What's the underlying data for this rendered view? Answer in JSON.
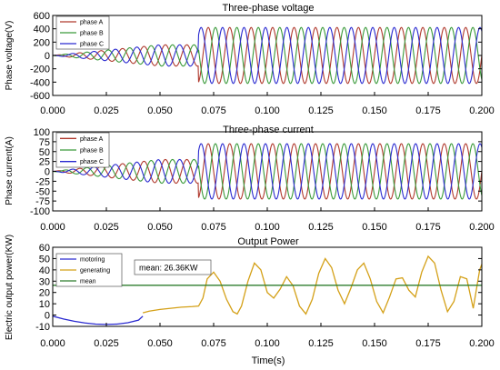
{
  "figure": {
    "xlabel": "Time(s)"
  },
  "chart_data": [
    {
      "type": "line",
      "title": "Three-phase voltage",
      "ylabel": "Phase voltage(V)",
      "xlim": [
        0,
        0.2
      ],
      "ylim": [
        -600,
        600
      ],
      "xticks": [
        "0.000",
        "0.025",
        "0.050",
        "0.075",
        "0.100",
        "0.125",
        "0.150",
        "0.175",
        "0.200"
      ],
      "yticks": [
        600,
        400,
        200,
        0,
        -200,
        -400,
        -600
      ],
      "ytick_labels": [
        "600",
        "400",
        "200",
        "0",
        "-200",
        "-400",
        "-600"
      ],
      "legend_position": "top-left",
      "waveform": {
        "frequency_hz": 100,
        "ramp_start_s": 0.0,
        "ramp_end_s": 0.05,
        "ramp_amplitude": 160,
        "step_time_s": 0.068,
        "steady_amplitude": 420
      },
      "series": [
        {
          "name": "phase A",
          "color": "#b03a2e",
          "phase_deg": 0
        },
        {
          "name": "phase B",
          "color": "#3a9a3a",
          "phase_deg": -120
        },
        {
          "name": "phase C",
          "color": "#2a2ad0",
          "phase_deg": 120
        }
      ]
    },
    {
      "type": "line",
      "title": "Three-phase current",
      "ylabel": "Phase current(A)",
      "xlim": [
        0,
        0.2
      ],
      "ylim": [
        -100,
        100
      ],
      "xticks": [
        "0.000",
        "0.025",
        "0.050",
        "0.075",
        "0.100",
        "0.125",
        "0.150",
        "0.175",
        "0.200"
      ],
      "yticks": [
        100,
        75,
        50,
        25,
        0,
        -25,
        -50,
        -75,
        -100
      ],
      "ytick_labels": [
        "100",
        "75",
        "50",
        "25",
        "0",
        "-25",
        "-50",
        "-75",
        "-100"
      ],
      "legend_position": "top-left",
      "waveform": {
        "frequency_hz": 100,
        "ramp_start_s": 0.0,
        "ramp_end_s": 0.05,
        "ramp_amplitude": 30,
        "step_time_s": 0.068,
        "steady_amplitude": 70
      },
      "series": [
        {
          "name": "phase A",
          "color": "#b03a2e",
          "phase_deg": 0
        },
        {
          "name": "phase B",
          "color": "#3a9a3a",
          "phase_deg": -120
        },
        {
          "name": "phase C",
          "color": "#2a2ad0",
          "phase_deg": 120
        }
      ]
    },
    {
      "type": "line",
      "title": "Output Power",
      "ylabel": "Electric output power(KW)",
      "xlim": [
        0,
        0.2
      ],
      "ylim": [
        -10,
        60
      ],
      "xticks": [
        "0.000",
        "0.025",
        "0.050",
        "0.075",
        "0.100",
        "0.125",
        "0.150",
        "0.175",
        "0.200"
      ],
      "yticks": [
        60,
        50,
        40,
        30,
        20,
        10,
        0,
        -10
      ],
      "ytick_labels": [
        "60",
        "50",
        "40",
        "30",
        "20",
        "10",
        "0",
        "-10"
      ],
      "legend_position": "top-left",
      "annotation": "mean: 26.36KW",
      "series": [
        {
          "name": "motoring",
          "color": "#2a2ad0",
          "x": [
            0.0,
            0.005,
            0.01,
            0.015,
            0.02,
            0.025,
            0.03,
            0.035,
            0.04,
            0.042
          ],
          "y": [
            -1,
            -3.5,
            -5.5,
            -7,
            -8,
            -8.3,
            -8,
            -6.8,
            -4.5,
            -1
          ]
        },
        {
          "name": "generating",
          "color": "#d4a017",
          "x": [
            0.042,
            0.045,
            0.05,
            0.055,
            0.06,
            0.065,
            0.068,
            0.07,
            0.072,
            0.075,
            0.078,
            0.081,
            0.084,
            0.086,
            0.088,
            0.091,
            0.094,
            0.097,
            0.1,
            0.103,
            0.106,
            0.109,
            0.112,
            0.115,
            0.118,
            0.121,
            0.124,
            0.127,
            0.13,
            0.133,
            0.136,
            0.139,
            0.142,
            0.145,
            0.148,
            0.151,
            0.154,
            0.157,
            0.16,
            0.163,
            0.166,
            0.169,
            0.172,
            0.175,
            0.178,
            0.181,
            0.184,
            0.187,
            0.19,
            0.193,
            0.196,
            0.199,
            0.2
          ],
          "y": [
            2,
            3.5,
            5,
            6,
            7,
            7.5,
            8,
            15,
            32,
            38,
            30,
            14,
            3,
            1,
            8,
            30,
            46,
            40,
            20,
            15,
            23,
            34,
            26,
            8,
            1,
            14,
            37,
            50,
            42,
            22,
            10,
            24,
            40,
            46,
            32,
            12,
            2,
            16,
            32,
            33,
            22,
            16,
            38,
            52,
            46,
            22,
            3,
            12,
            34,
            32,
            6,
            40,
            45
          ]
        },
        {
          "name": "mean",
          "color": "#2e7d2e",
          "x": [
            0.0,
            0.2
          ],
          "y": [
            26.36,
            26.36
          ]
        }
      ]
    }
  ]
}
